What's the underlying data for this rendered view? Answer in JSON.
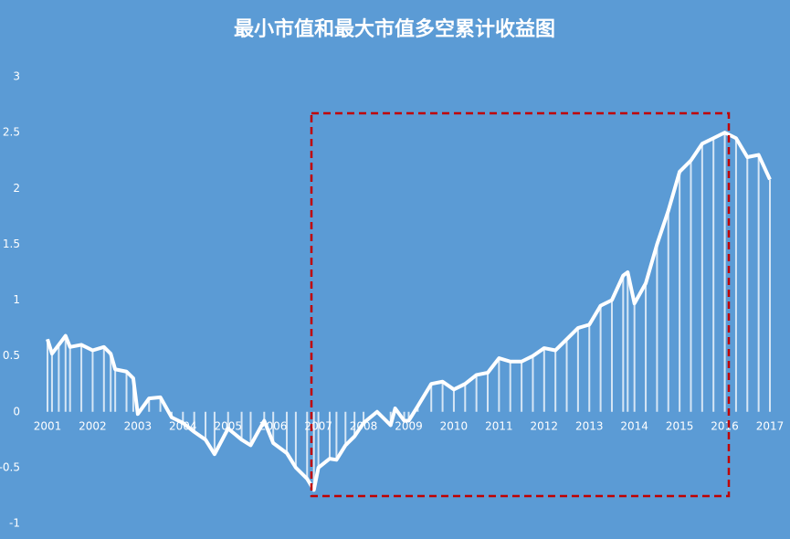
{
  "chart_data": {
    "type": "line",
    "title": "最小市值和最大市值多空累计收益图",
    "x": [
      2001.0,
      2001.1,
      2001.25,
      2001.4,
      2001.5,
      2001.75,
      2002.0,
      2002.25,
      2002.4,
      2002.5,
      2002.75,
      2002.9,
      2003.0,
      2003.25,
      2003.5,
      2003.75,
      2004.0,
      2004.25,
      2004.5,
      2004.7,
      2005.0,
      2005.3,
      2005.5,
      2005.8,
      2006.0,
      2006.3,
      2006.5,
      2006.75,
      2006.9,
      2007.0,
      2007.25,
      2007.4,
      2007.6,
      2007.8,
      2008.0,
      2008.3,
      2008.6,
      2008.7,
      2008.9,
      2009.0,
      2009.2,
      2009.5,
      2009.75,
      2010.0,
      2010.25,
      2010.5,
      2010.75,
      2011.0,
      2011.25,
      2011.5,
      2011.75,
      2012.0,
      2012.25,
      2012.5,
      2012.75,
      2013.0,
      2013.25,
      2013.5,
      2013.75,
      2013.85,
      2014.0,
      2014.25,
      2014.5,
      2014.75,
      2015.0,
      2015.25,
      2015.5,
      2015.75,
      2016.0,
      2016.25,
      2016.5,
      2016.75,
      2017.0
    ],
    "series": [
      {
        "color": "#ffffff",
        "values": [
          0.65,
          0.52,
          0.6,
          0.68,
          0.58,
          0.6,
          0.55,
          0.58,
          0.52,
          0.38,
          0.36,
          0.3,
          -0.02,
          0.12,
          0.13,
          -0.05,
          -0.1,
          -0.18,
          -0.25,
          -0.38,
          -0.15,
          -0.25,
          -0.3,
          -0.08,
          -0.28,
          -0.37,
          -0.5,
          -0.6,
          -0.7,
          -0.5,
          -0.42,
          -0.43,
          -0.3,
          -0.22,
          -0.1,
          0.0,
          -0.12,
          0.03,
          -0.08,
          -0.08,
          0.05,
          0.25,
          0.27,
          0.2,
          0.25,
          0.33,
          0.35,
          0.48,
          0.45,
          0.45,
          0.5,
          0.57,
          0.55,
          0.65,
          0.75,
          0.78,
          0.95,
          1.0,
          1.22,
          1.25,
          0.97,
          1.15,
          1.5,
          1.8,
          2.15,
          2.25,
          2.4,
          2.45,
          2.5,
          2.45,
          2.28,
          2.3,
          2.08
        ]
      }
    ],
    "xlim": [
      2001,
      2017
    ],
    "xticks": [
      2001,
      2002,
      2003,
      2004,
      2005,
      2006,
      2007,
      2008,
      2009,
      2010,
      2011,
      2012,
      2013,
      2014,
      2015,
      2016,
      2017
    ],
    "ylim": [
      -1,
      3
    ],
    "yticks": [
      -1,
      -0.5,
      0,
      0.5,
      1,
      1.5,
      2,
      2.5,
      3
    ]
  }
}
